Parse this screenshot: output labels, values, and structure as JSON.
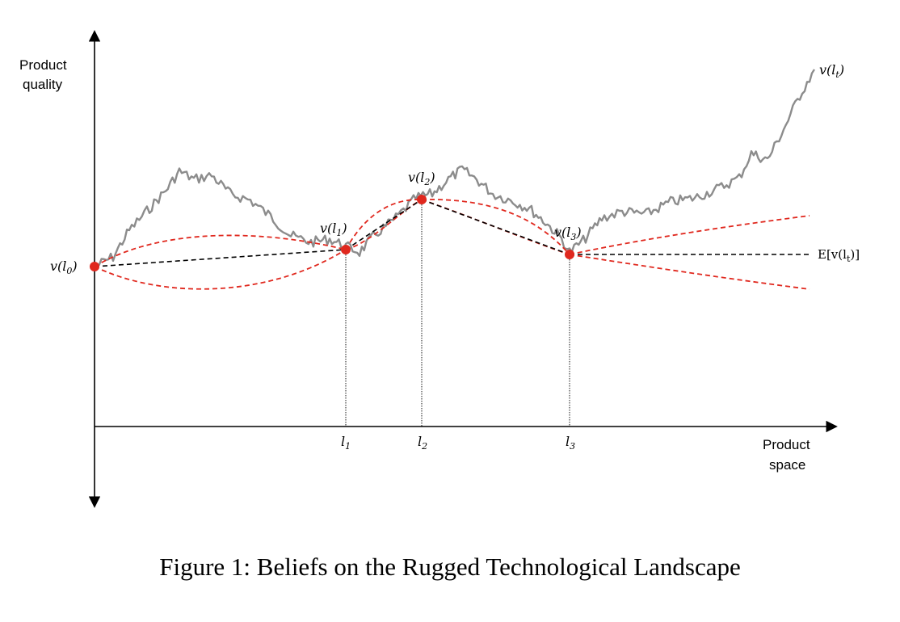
{
  "caption": "Figure 1: Beliefs on the Rugged Technological Landscape",
  "axes": {
    "y_label_line1": "Product",
    "y_label_line2": "quality",
    "x_label_line1": "Product",
    "x_label_line2": "space"
  },
  "points": {
    "v0": {
      "pre": "v(l",
      "sub": "0",
      "post": ")"
    },
    "v1": {
      "pre": "v(l",
      "sub": "1",
      "post": ")"
    },
    "v2": {
      "pre": "v(l",
      "sub": "2",
      "post": ")"
    },
    "v3": {
      "pre": "v(l",
      "sub": "3",
      "post": ")"
    }
  },
  "ticks": {
    "l1": {
      "main": "l",
      "sub": "1"
    },
    "l2": {
      "main": "l",
      "sub": "2"
    },
    "l3": {
      "main": "l",
      "sub": "3"
    }
  },
  "curve_label": {
    "pre": "v(l",
    "sub": "t",
    "post": ")"
  },
  "expectation_label": {
    "pre": "E[v(l",
    "sub": "t",
    "post": ")]"
  },
  "colors": {
    "landscape": "#8c8c8c",
    "belief_bands": "#e0281e",
    "expectation": "#000000",
    "points": "#e0281e"
  }
}
